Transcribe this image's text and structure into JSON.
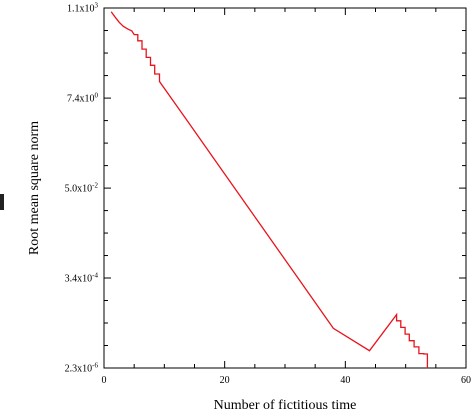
{
  "chart_data": {
    "type": "line",
    "title": "",
    "xlabel": "Number of fictitious time",
    "ylabel": "Root mean square norm",
    "xlim": [
      0,
      60
    ],
    "ylim_log10": [
      -5.6383,
      3.0414
    ],
    "y_scale": "log",
    "grid": false,
    "legend": "none",
    "x_ticks": [
      0,
      20,
      40,
      60
    ],
    "x_tick_labels": [
      "0",
      "20",
      "40",
      "60"
    ],
    "y_ticks_log10": [
      3.0414,
      0.8692,
      -1.301,
      -3.4685,
      -5.6383
    ],
    "y_tick_labels": [
      {
        "base": "1.1x10",
        "exp": "3"
      },
      {
        "base": "7.4x10",
        "exp": "0"
      },
      {
        "base": "5.0x10",
        "exp": "-2"
      },
      {
        "base": "3.4x10",
        "exp": "-4"
      },
      {
        "base": "2.3x10",
        "exp": "-6"
      }
    ],
    "series": [
      {
        "color": "#e8141c",
        "x": [
          1.2,
          1.8,
          2.5,
          3.2,
          4.0,
          4.6,
          5.0,
          5.6,
          5.6,
          6.3,
          6.3,
          7.0,
          7.0,
          7.7,
          7.7,
          8.4,
          8.4,
          9.2,
          9.2,
          14,
          20,
          26,
          32,
          38,
          44,
          48.5,
          48.5,
          49.2,
          49.2,
          49.9,
          49.9,
          50.6,
          50.6,
          51.4,
          51.4,
          52.2,
          52.2,
          53.0,
          53.0,
          53.6,
          53.6
        ],
        "y_log10": [
          2.95,
          2.83,
          2.7,
          2.6,
          2.53,
          2.49,
          2.4,
          2.4,
          2.25,
          2.25,
          2.05,
          2.05,
          1.85,
          1.85,
          1.66,
          1.66,
          1.45,
          1.45,
          1.27,
          0.28,
          -0.96,
          -2.2,
          -3.44,
          -4.68,
          -5.22,
          -4.35,
          -4.5,
          -4.5,
          -4.66,
          -4.66,
          -4.82,
          -4.82,
          -4.98,
          -4.98,
          -5.13,
          -5.13,
          -5.29,
          -5.29,
          -5.3,
          -5.3,
          -5.64
        ]
      }
    ]
  }
}
